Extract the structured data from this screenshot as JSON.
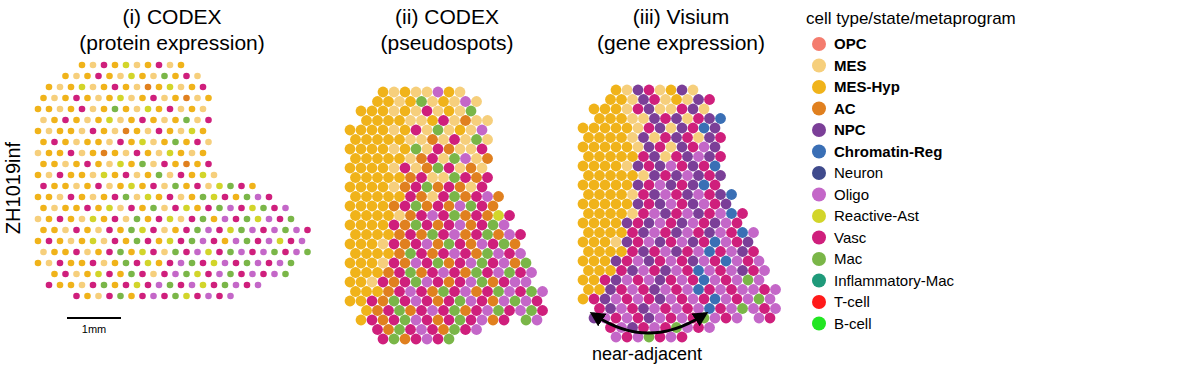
{
  "chart_data": [
    {
      "type": "scatter",
      "title": "(i) CODEX",
      "subtitle": "(protein expression)",
      "marker": "dot",
      "tick_labels": false,
      "spots": [
        [
          null,
          null,
          null,
          null,
          2,
          1,
          9,
          2,
          8,
          1,
          2,
          9,
          1,
          2
        ],
        [
          null,
          null,
          2,
          1,
          2,
          9,
          2,
          1,
          8,
          2,
          1,
          10,
          2,
          9,
          1
        ],
        [
          null,
          2,
          1,
          2,
          8,
          1,
          2,
          9,
          2,
          1,
          3,
          2,
          8,
          1,
          2,
          9
        ],
        [
          2,
          1,
          2,
          9,
          2,
          1,
          2,
          8,
          1,
          2,
          9,
          1,
          2,
          3,
          1,
          2
        ],
        [
          2,
          2,
          1,
          2,
          9,
          1,
          2,
          10,
          2,
          1,
          8,
          2,
          9,
          1,
          2,
          1
        ],
        [
          1,
          2,
          9,
          2,
          1,
          2,
          8,
          1,
          2,
          9,
          2,
          1,
          2,
          10,
          1,
          9
        ],
        [
          2,
          1,
          2,
          2,
          1,
          9,
          2,
          1,
          3,
          2,
          1,
          9,
          2,
          1,
          8,
          2
        ],
        [
          2,
          9,
          2,
          1,
          2,
          2,
          1,
          9,
          2,
          8,
          1,
          2,
          10,
          2,
          9,
          1
        ],
        [
          1,
          2,
          2,
          9,
          1,
          2,
          3,
          2,
          1,
          9,
          2,
          1,
          8,
          2,
          1,
          2
        ],
        [
          2,
          2,
          1,
          2,
          9,
          2,
          1,
          8,
          2,
          10,
          1,
          9,
          2,
          3,
          2,
          9
        ],
        [
          2,
          1,
          9,
          2,
          2,
          1,
          8,
          2,
          9,
          1,
          2,
          10,
          1,
          9,
          2,
          8,
          1
        ],
        [
          9,
          2,
          2,
          1,
          2,
          9,
          1,
          2,
          8,
          2,
          9,
          1,
          10,
          2,
          9,
          1,
          8,
          10,
          9,
          2
        ],
        [
          2,
          2,
          1,
          9,
          2,
          1,
          2,
          9,
          10,
          1,
          8,
          2,
          9,
          1,
          2,
          10,
          8,
          9,
          2,
          10,
          7,
          9
        ],
        [
          2,
          1,
          2,
          2,
          9,
          2,
          8,
          1,
          9,
          2,
          10,
          1,
          9,
          8,
          2,
          9,
          10,
          7,
          9,
          8,
          10,
          9,
          7
        ],
        [
          1,
          2,
          9,
          2,
          1,
          8,
          2,
          9,
          1,
          10,
          2,
          9,
          8,
          1,
          9,
          10,
          2,
          7,
          9,
          10,
          8,
          7,
          9,
          10
        ],
        [
          2,
          2,
          1,
          9,
          2,
          1,
          9,
          2,
          10,
          8,
          9,
          1,
          2,
          9,
          10,
          7,
          9,
          8,
          10,
          7,
          9,
          7,
          10,
          7,
          9
        ],
        [
          2,
          9,
          2,
          1,
          2,
          8,
          1,
          9,
          2,
          10,
          9,
          2,
          8,
          9,
          10,
          7,
          9,
          2,
          7,
          10,
          9,
          7,
          8,
          9,
          7
        ],
        [
          1,
          2,
          2,
          9,
          1,
          2,
          9,
          10,
          2,
          8,
          9,
          1,
          10,
          9,
          7,
          8,
          9,
          10,
          7,
          9,
          7,
          10,
          9,
          7,
          10
        ],
        [
          2,
          1,
          9,
          2,
          2,
          9,
          1,
          2,
          10,
          9,
          8,
          2,
          9,
          7,
          10,
          9,
          8,
          7,
          9,
          10,
          7,
          9,
          7,
          10
        ],
        [
          null,
          2,
          9,
          1,
          2,
          8,
          9,
          2,
          10,
          9,
          1,
          9,
          7,
          10,
          8,
          9,
          7,
          10,
          9,
          7,
          9,
          7,
          10
        ],
        [
          null,
          9,
          2,
          2,
          1,
          9,
          10,
          2,
          9,
          8,
          9,
          7,
          10,
          9,
          7,
          8,
          9,
          10,
          7,
          9,
          7
        ],
        [
          null,
          null,
          null,
          9,
          2,
          1,
          9,
          10,
          2,
          9,
          7,
          9,
          10,
          8,
          9,
          7,
          9,
          7
        ]
      ]
    },
    {
      "type": "scatter",
      "title": "(ii) CODEX",
      "subtitle": "(pseudospots)",
      "marker": "circle",
      "tick_labels": false,
      "spots": [
        [
          null,
          null,
          null,
          2,
          1,
          2,
          1,
          1,
          7,
          2,
          1
        ],
        [
          null,
          null,
          2,
          2,
          1,
          2,
          10,
          1,
          2,
          1,
          7,
          1
        ],
        [
          null,
          2,
          2,
          2,
          1,
          2,
          1,
          9,
          1,
          2,
          1,
          10
        ],
        [
          null,
          2,
          2,
          2,
          2,
          1,
          1,
          2,
          9,
          1,
          3,
          1,
          1
        ],
        [
          2,
          2,
          2,
          2,
          1,
          2,
          9,
          1,
          10,
          1,
          2,
          1,
          7
        ],
        [
          2,
          2,
          2,
          2,
          2,
          1,
          1,
          3,
          1,
          9,
          1,
          10,
          1
        ],
        [
          2,
          2,
          2,
          2,
          1,
          2,
          10,
          1,
          9,
          3,
          1,
          1,
          9
        ],
        [
          2,
          2,
          2,
          2,
          2,
          1,
          3,
          9,
          1,
          10,
          7,
          1,
          3
        ],
        [
          2,
          2,
          2,
          2,
          1,
          9,
          1,
          3,
          10,
          9,
          1,
          3,
          1
        ],
        [
          2,
          2,
          2,
          2,
          2,
          3,
          9,
          1,
          1,
          10,
          9,
          3,
          9
        ],
        [
          2,
          2,
          2,
          2,
          1,
          3,
          9,
          10,
          3,
          9,
          3,
          1,
          9
        ],
        [
          2,
          2,
          2,
          2,
          2,
          9,
          3,
          1,
          9,
          10,
          3,
          9,
          7,
          3
        ],
        [
          2,
          2,
          2,
          2,
          3,
          9,
          10,
          3,
          9,
          3,
          7,
          10,
          9,
          3
        ],
        [
          2,
          2,
          2,
          2,
          1,
          3,
          9,
          7,
          9,
          10,
          3,
          9,
          3,
          8,
          9
        ],
        [
          2,
          2,
          2,
          2,
          9,
          3,
          10,
          9,
          3,
          9,
          7,
          3,
          9,
          10,
          7
        ],
        [
          2,
          2,
          2,
          2,
          3,
          9,
          3,
          10,
          9,
          7,
          3,
          9,
          10,
          3,
          7,
          9
        ],
        [
          2,
          2,
          2,
          1,
          9,
          3,
          9,
          7,
          3,
          10,
          9,
          3,
          7,
          9,
          10,
          3
        ],
        [
          2,
          2,
          2,
          2,
          3,
          10,
          9,
          3,
          9,
          7,
          9,
          3,
          10,
          7,
          9,
          7
        ],
        [
          2,
          2,
          2,
          1,
          9,
          3,
          7,
          9,
          10,
          3,
          9,
          7,
          10,
          9,
          7,
          3,
          10
        ],
        [
          2,
          2,
          2,
          3,
          9,
          10,
          3,
          9,
          7,
          9,
          3,
          10,
          9,
          7,
          10,
          9,
          7
        ],
        [
          2,
          2,
          1,
          9,
          3,
          9,
          10,
          7,
          9,
          3,
          9,
          7,
          10,
          3,
          9,
          7,
          7
        ],
        [
          2,
          2,
          2,
          3,
          9,
          7,
          9,
          3,
          10,
          9,
          7,
          3,
          9,
          10,
          7,
          9,
          10,
          7
        ],
        [
          2,
          2,
          9,
          3,
          10,
          9,
          7,
          9,
          3,
          9,
          10,
          7,
          9,
          3,
          7,
          10,
          7,
          9
        ],
        [
          null,
          2,
          3,
          9,
          10,
          3,
          9,
          7,
          9,
          10,
          3,
          9,
          7,
          10,
          9,
          7,
          10,
          9
        ],
        [
          null,
          2,
          9,
          3,
          9,
          10,
          7,
          9,
          3,
          9,
          10,
          9,
          7,
          3,
          9,
          null,
          10,
          7
        ],
        [
          null,
          null,
          9,
          3,
          10,
          9,
          7,
          9,
          3,
          10,
          9,
          7
        ],
        [
          null,
          null,
          null,
          9,
          10,
          3,
          9,
          7,
          9,
          10
        ]
      ]
    },
    {
      "type": "scatter",
      "title": "(iii) Visium",
      "subtitle": "(gene expression)",
      "marker": "circle",
      "tick_labels": false,
      "spots": [
        [
          null,
          null,
          null,
          2,
          1,
          4,
          9,
          1,
          2,
          4,
          1
        ],
        [
          null,
          null,
          2,
          2,
          1,
          4,
          9,
          1,
          2,
          1,
          4,
          9
        ],
        [
          null,
          2,
          2,
          2,
          1,
          9,
          4,
          1,
          1,
          9,
          4,
          1
        ],
        [
          null,
          2,
          2,
          2,
          1,
          1,
          4,
          9,
          4,
          1,
          9,
          4,
          5
        ],
        [
          2,
          2,
          2,
          2,
          2,
          1,
          9,
          4,
          1,
          4,
          9,
          5,
          4
        ],
        [
          2,
          2,
          2,
          2,
          1,
          4,
          1,
          9,
          4,
          9,
          1,
          4,
          9
        ],
        [
          2,
          2,
          2,
          2,
          2,
          1,
          4,
          9,
          1,
          4,
          9,
          7,
          4
        ],
        [
          2,
          2,
          2,
          2,
          2,
          9,
          4,
          1,
          9,
          4,
          7,
          4,
          9
        ],
        [
          2,
          2,
          2,
          2,
          1,
          4,
          9,
          4,
          7,
          9,
          4,
          9,
          5
        ],
        [
          2,
          2,
          2,
          2,
          2,
          1,
          4,
          9,
          4,
          7,
          4,
          9,
          4
        ],
        [
          2,
          2,
          2,
          2,
          2,
          4,
          9,
          7,
          4,
          9,
          4,
          5,
          9
        ],
        [
          2,
          2,
          2,
          2,
          1,
          9,
          4,
          7,
          9,
          4,
          7,
          9,
          4,
          5
        ],
        [
          2,
          2,
          2,
          2,
          2,
          4,
          9,
          4,
          7,
          9,
          4,
          7,
          9,
          4
        ],
        [
          2,
          2,
          2,
          2,
          1,
          9,
          7,
          4,
          9,
          7,
          4,
          9,
          7,
          5,
          9
        ],
        [
          2,
          2,
          2,
          2,
          4,
          9,
          4,
          7,
          9,
          4,
          7,
          9,
          4,
          7,
          9
        ],
        [
          2,
          2,
          2,
          2,
          9,
          4,
          7,
          9,
          4,
          7,
          9,
          4,
          7,
          9,
          5,
          7
        ],
        [
          2,
          2,
          2,
          1,
          4,
          9,
          7,
          4,
          9,
          7,
          4,
          9,
          5,
          7,
          9,
          4
        ],
        [
          2,
          2,
          2,
          2,
          9,
          4,
          9,
          7,
          4,
          9,
          7,
          5,
          9,
          7,
          4,
          9
        ],
        [
          2,
          2,
          2,
          4,
          9,
          7,
          4,
          9,
          7,
          9,
          4,
          7,
          9,
          5,
          7,
          9,
          7
        ],
        [
          2,
          2,
          2,
          9,
          4,
          7,
          9,
          4,
          7,
          9,
          5,
          7,
          9,
          7,
          4,
          9,
          7
        ],
        [
          2,
          2,
          9,
          4,
          7,
          9,
          7,
          4,
          9,
          7,
          9,
          5,
          7,
          9,
          7,
          10,
          7
        ],
        [
          2,
          2,
          4,
          9,
          7,
          9,
          4,
          7,
          9,
          7,
          5,
          9,
          7,
          9,
          7,
          7,
          9,
          7
        ],
        [
          2,
          9,
          4,
          7,
          9,
          7,
          9,
          4,
          7,
          9,
          7,
          9,
          5,
          7,
          9,
          7,
          10,
          7
        ],
        [
          null,
          9,
          4,
          7,
          9,
          4,
          7,
          9,
          7,
          9,
          7,
          5,
          9,
          7,
          10,
          7,
          9,
          7
        ],
        [
          null,
          4,
          7,
          9,
          7,
          9,
          4,
          7,
          9,
          7,
          9,
          10,
          7,
          9,
          7,
          null,
          7,
          9
        ],
        [
          null,
          null,
          9,
          7,
          4,
          9,
          7,
          9,
          10,
          7,
          9,
          7
        ],
        [
          null,
          null,
          null,
          7,
          9,
          7,
          10,
          9,
          7,
          9
        ]
      ]
    }
  ],
  "figure": {
    "row_label": "ZH1019inf",
    "scale_bar": "1mm",
    "annotation": "near-adjacent",
    "legend_title": "cell type/state/metaprogram",
    "legend": [
      {
        "name": "OPC",
        "color": "#f47c6e"
      },
      {
        "name": "MES",
        "color": "#f6cf7c"
      },
      {
        "name": "MES-Hyp",
        "color": "#f0b31a"
      },
      {
        "name": "AC",
        "color": "#e0801f"
      },
      {
        "name": "NPC",
        "color": "#7b3f98"
      },
      {
        "name": "Chromatin-Reg",
        "color": "#3a6fb5"
      },
      {
        "name": "Neuron",
        "color": "#3f4a8c"
      },
      {
        "name": "Oligo",
        "color": "#c467c8"
      },
      {
        "name": "Reactive-Ast",
        "color": "#d2d52a"
      },
      {
        "name": "Vasc",
        "color": "#cf1f7c"
      },
      {
        "name": "Mac",
        "color": "#7ab648"
      },
      {
        "name": "Inflammatory-Mac",
        "color": "#1f9a7a"
      },
      {
        "name": "T-cell",
        "color": "#ff1a1a"
      },
      {
        "name": "B-cell",
        "color": "#22e622"
      }
    ]
  }
}
